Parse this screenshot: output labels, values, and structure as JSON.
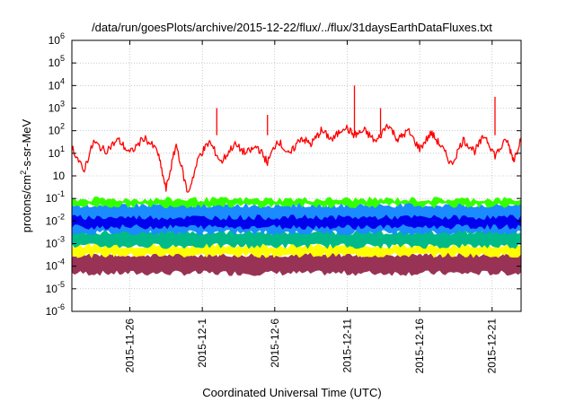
{
  "chart_data": {
    "type": "area",
    "title": "/data/run/goesPlots/archive/2015-12-22/flux/../flux/31daysEarthDataFluxes.txt",
    "xlabel": "Coordinated Universal Time (UTC)",
    "ylabel": {
      "pre": "protons/cm",
      "sup": "2",
      "post": "-s-sr-MeV"
    },
    "y_scale": "log",
    "ylim_exp": [
      -6,
      6
    ],
    "y_ticks": [
      {
        "base": "10",
        "exp": "-6"
      },
      {
        "base": "10",
        "exp": "-5"
      },
      {
        "base": "10",
        "exp": "-4"
      },
      {
        "base": "10",
        "exp": "-3"
      },
      {
        "base": "10",
        "exp": "-2"
      },
      {
        "base": "10",
        "exp": "-1"
      },
      {
        "base": "10",
        "exp": ""
      },
      {
        "base": "10",
        "exp": "1"
      },
      {
        "base": "10",
        "exp": "2"
      },
      {
        "base": "10",
        "exp": "3"
      },
      {
        "base": "10",
        "exp": "4"
      },
      {
        "base": "10",
        "exp": "5"
      },
      {
        "base": "10",
        "exp": "6"
      }
    ],
    "xlim": [
      "2015-11-22",
      "2015-12-23"
    ],
    "x_ticks": [
      "2015-11-26",
      "2015-12-1",
      "2015-12-6",
      "2015-12-11",
      "2015-12-16",
      "2015-12-21"
    ],
    "grid": true,
    "legend": "none",
    "series_colors": [
      "#ff0000",
      "#33ff00",
      "#1a8cff",
      "#0000ee",
      "#00bb88",
      "#ffff00",
      "#993355"
    ],
    "bands": [
      {
        "color": "#993355",
        "log_low": -4.3,
        "log_high": -3.5
      },
      {
        "color": "#ffff00",
        "log_low": -3.5,
        "log_high": -3.1
      },
      {
        "color": "#00bb88",
        "log_low": -3.1,
        "log_high": -2.5
      },
      {
        "color": "#1a8cff",
        "log_low": -2.5,
        "log_high": -1.3
      },
      {
        "color": "#33ff00",
        "log_low": -1.3,
        "log_high": -1.05
      },
      {
        "color": "#0000ee",
        "log_low": -2.25,
        "log_high": -1.85
      }
    ],
    "red_series": {
      "x_day": [
        0,
        0.8,
        1.5,
        2.3,
        3.2,
        4.0,
        5.0,
        5.9,
        6.5,
        7.2,
        8.0,
        8.8,
        9.5,
        10.3,
        11.2,
        12.0,
        12.8,
        13.5,
        14.2,
        15.0,
        15.8,
        16.5,
        17.2,
        18.0,
        18.8,
        19.5,
        20.2,
        21.0,
        21.8,
        22.5,
        23.2,
        24.0,
        24.8,
        25.5,
        26.2,
        27.0,
        27.8,
        28.5,
        29.2,
        30.0,
        30.5,
        31.0
      ],
      "log_y": [
        1.3,
        0.2,
        1.5,
        1.1,
        1.6,
        1.0,
        1.7,
        1.1,
        -0.6,
        1.4,
        -0.8,
        0.9,
        1.5,
        0.6,
        1.4,
        1.0,
        1.3,
        0.6,
        1.6,
        0.9,
        1.7,
        1.4,
        2.0,
        1.6,
        2.2,
        1.8,
        2.0,
        1.5,
        2.3,
        1.6,
        2.0,
        1.2,
        1.9,
        1.3,
        0.5,
        1.6,
        1.1,
        1.8,
        0.9,
        1.6,
        0.7,
        1.7
      ],
      "spikes": [
        {
          "x_day": 10.0,
          "log_y": 3.0
        },
        {
          "x_day": 13.5,
          "log_y": 2.7
        },
        {
          "x_day": 19.5,
          "log_y": 4.0
        },
        {
          "x_day": 21.3,
          "log_y": 3.0
        },
        {
          "x_day": 29.2,
          "log_y": 3.5
        }
      ]
    }
  }
}
